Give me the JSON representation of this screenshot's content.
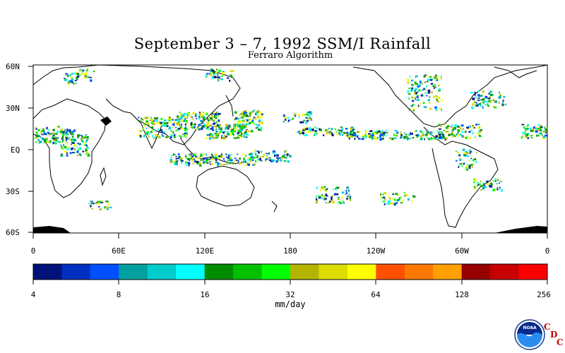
{
  "title": "September 3 – 7, 1992 SSM/I Rainfall",
  "subtitle": "Ferraro Algorithm",
  "map": {
    "lat_labels": [
      "60N",
      "30N",
      "EQ",
      "30S",
      "60S"
    ],
    "lon_labels": [
      "0",
      "60E",
      "120E",
      "180",
      "120W",
      "60W",
      "0"
    ]
  },
  "colorbar": {
    "units": "mm/day",
    "tick_labels": [
      "4",
      "8",
      "16",
      "32",
      "64",
      "128",
      "256"
    ],
    "colors": [
      "#00127a",
      "#0030c0",
      "#0050ff",
      "#00a0a0",
      "#00cccc",
      "#00ffff",
      "#008c00",
      "#00c000",
      "#00ff00",
      "#b4b400",
      "#dcdc00",
      "#ffff00",
      "#ff5000",
      "#ff7800",
      "#ffa000",
      "#960000",
      "#c80000",
      "#ff0000"
    ]
  },
  "logo": {
    "agency": "NOAA",
    "letters": [
      "C",
      "D",
      "C"
    ],
    "icon": "noaa-logo-icon"
  }
}
